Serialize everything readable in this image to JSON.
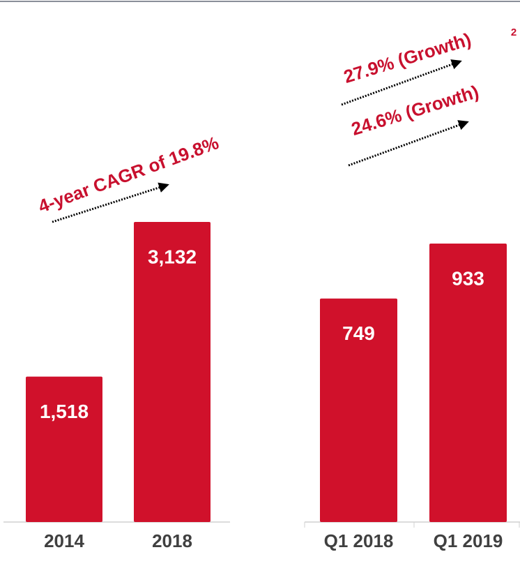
{
  "chart_data": [
    {
      "type": "bar",
      "categories": [
        "2014",
        "2018"
      ],
      "values": [
        1518,
        3132
      ],
      "value_labels": [
        "1,518",
        "3,132"
      ],
      "color": "#d0112b",
      "annotations": [
        "4-year CAGR of 19.8%"
      ]
    },
    {
      "type": "bar",
      "categories": [
        "Q1 2018",
        "Q1 2019"
      ],
      "values": [
        749,
        933
      ],
      "value_labels": [
        "749",
        "933"
      ],
      "color": "#d0112b",
      "annotations": [
        "27.9% (Growth)",
        "24.6% (Growth)"
      ],
      "note_ref": "2"
    }
  ]
}
